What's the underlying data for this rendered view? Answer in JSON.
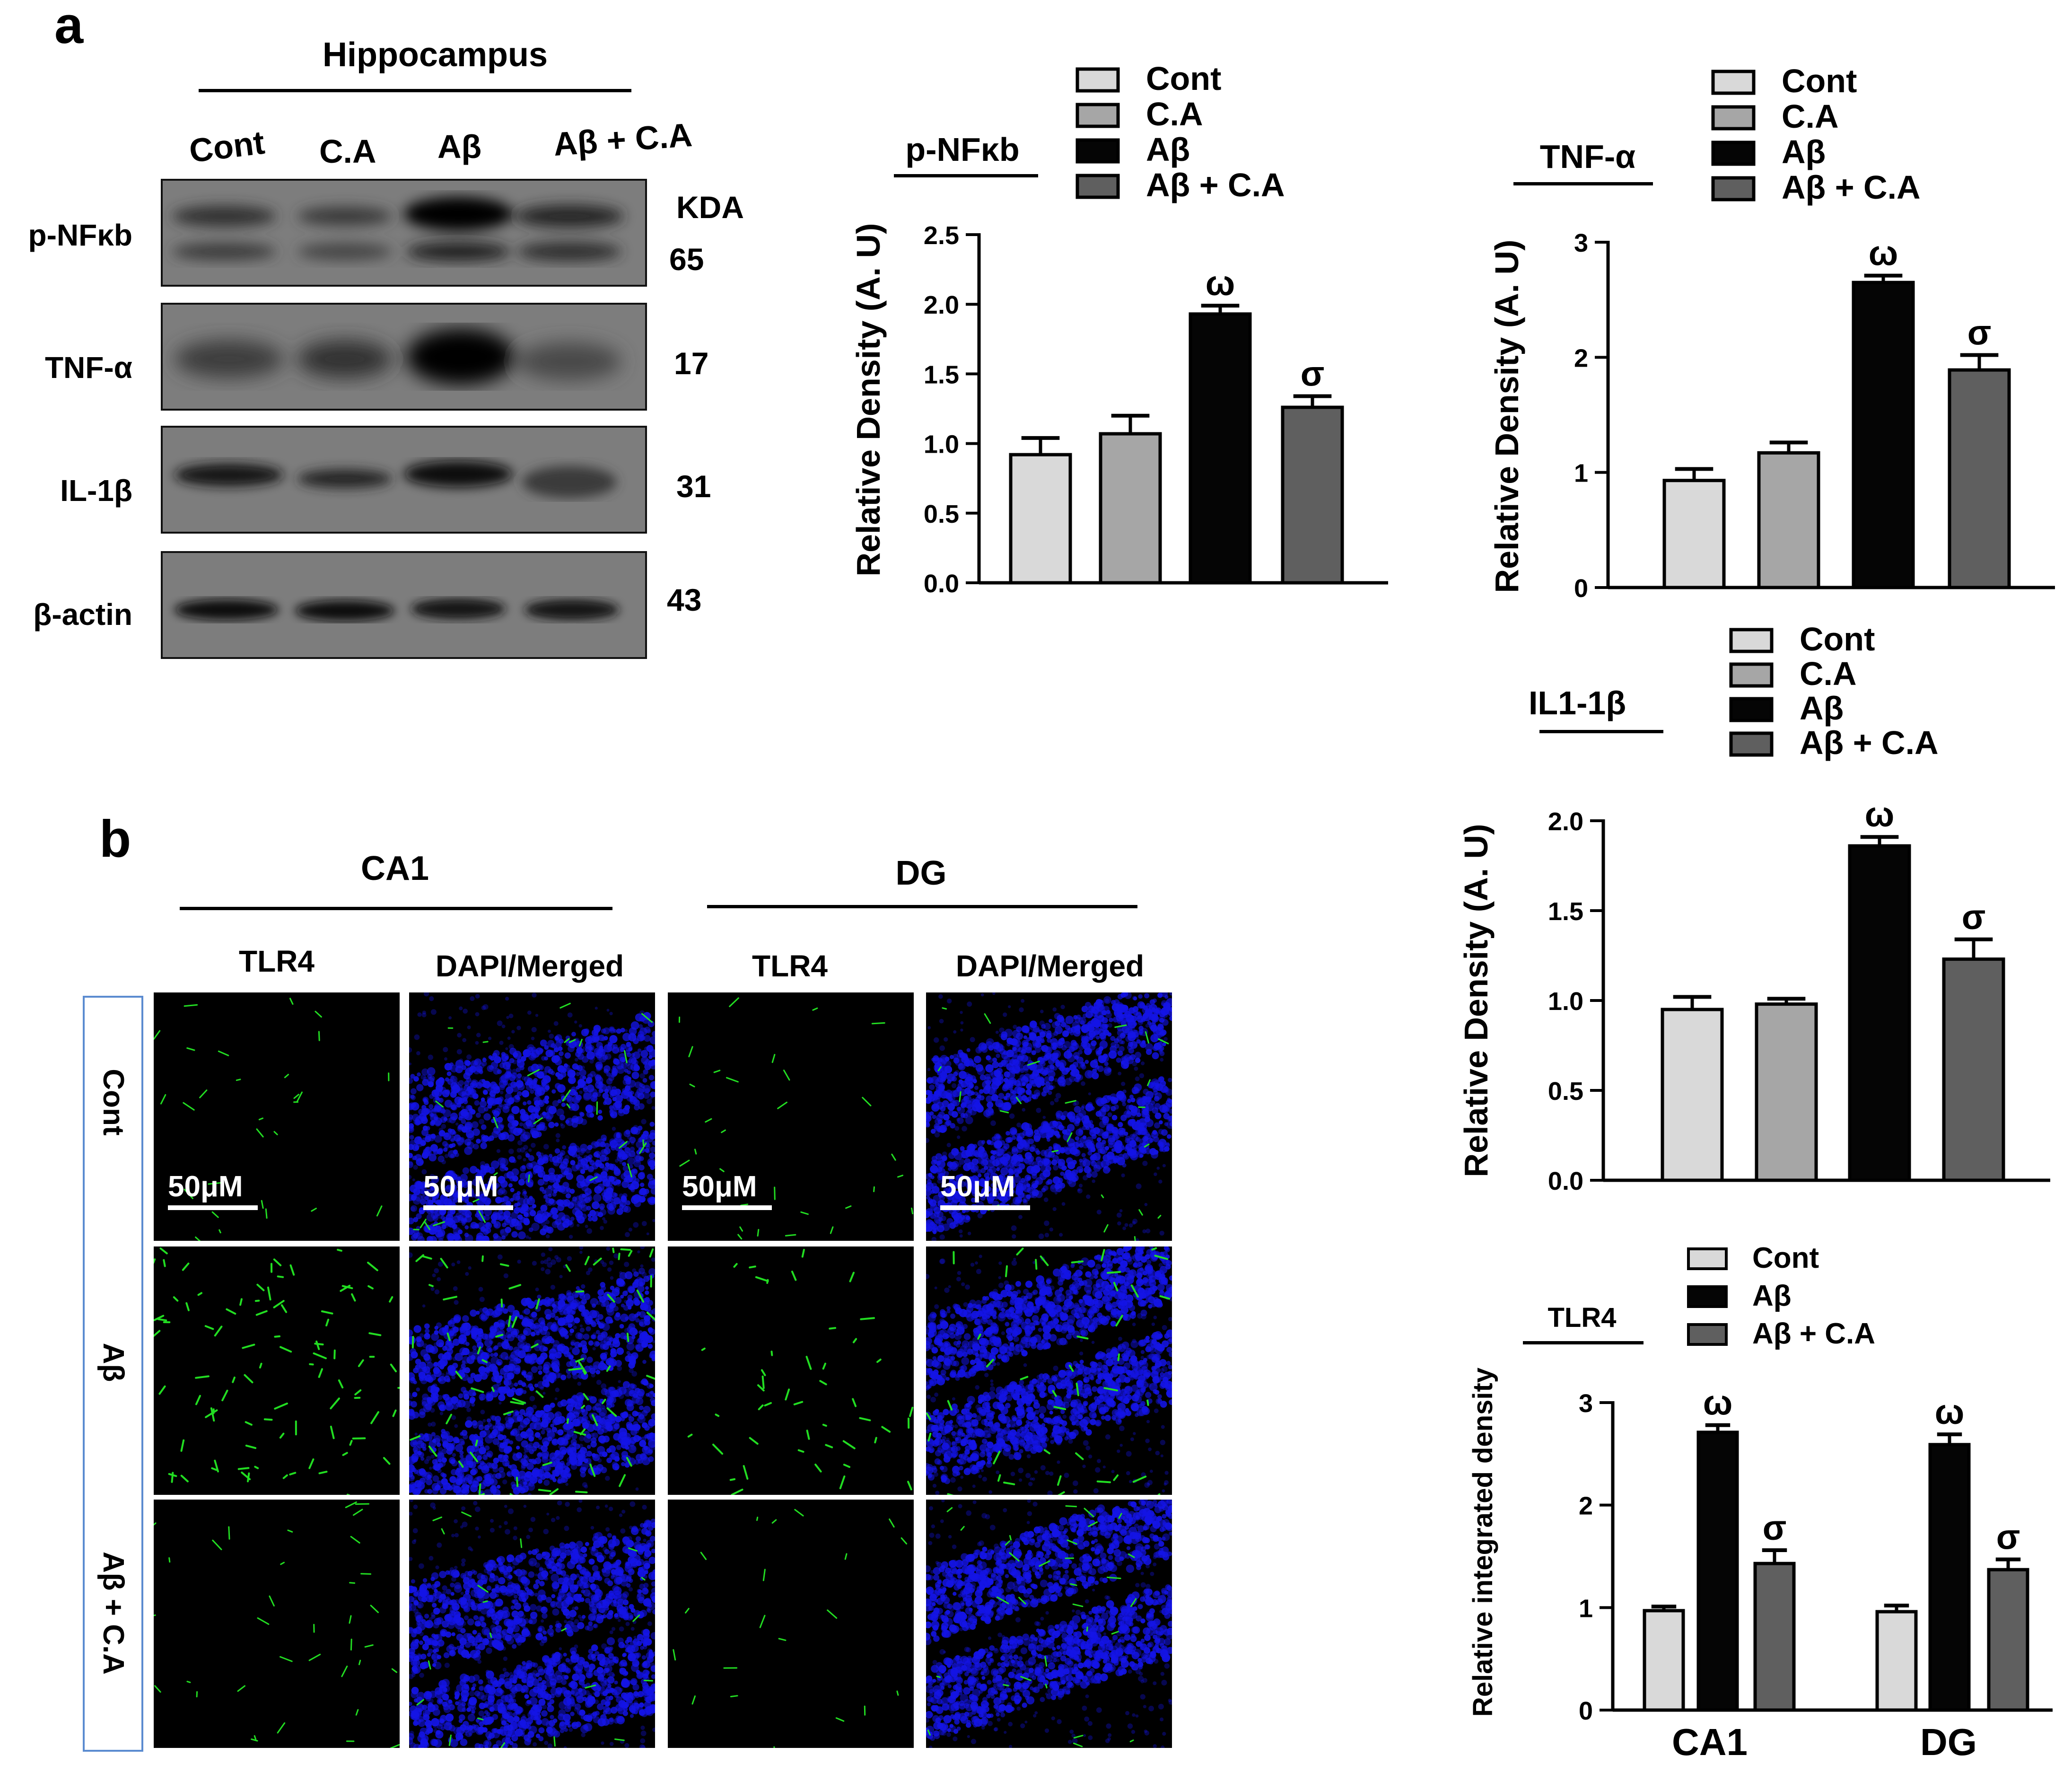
{
  "panels": {
    "a": "a",
    "b": "b"
  },
  "western": {
    "region": "Hippocampus",
    "lanes": [
      "Cont",
      "C.A",
      "Aβ",
      "Aβ + C.A"
    ],
    "kda_label": "KDA",
    "rows": [
      {
        "label": "p-NFκb",
        "kda": "65"
      },
      {
        "label": "TNF-α",
        "kda": "17"
      },
      {
        "label": "IL-1β",
        "kda": "31"
      },
      {
        "label": "β-actin",
        "kda": "43"
      }
    ]
  },
  "immuno": {
    "regions": [
      "CA1",
      "DG"
    ],
    "columns": [
      "TLR4",
      "DAPI/Merged",
      "TLR4",
      "DAPI/Merged"
    ],
    "rows": [
      "Cont",
      "Aβ",
      "Aβ + C.A"
    ],
    "scale_label": "50μM"
  },
  "colors": {
    "cont": "#d9d9d9",
    "ca": "#a6a6a6",
    "abeta": "#050505",
    "abeta_ca": "#5f5f5f",
    "dapi": "#1414e6",
    "tlr4": "#22dd22",
    "group_border": "#5b8bd0"
  },
  "chart_data": [
    {
      "type": "bar",
      "title": "p-NFκb",
      "ylabel": "Relative Density (A. U)",
      "categories": [
        "Cont",
        "C.A",
        "Aβ",
        "Aβ + C.A"
      ],
      "values": [
        0.92,
        1.07,
        1.93,
        1.26
      ],
      "errors": [
        0.12,
        0.13,
        0.06,
        0.08
      ],
      "annotations": [
        "",
        "",
        "ω",
        "σ"
      ],
      "ylim": [
        0,
        2.5
      ],
      "yticks": [
        "0.0",
        "0.5",
        "1.0",
        "1.5",
        "2.0",
        "2.5"
      ],
      "legend": [
        "Cont",
        "C.A",
        "Aβ",
        "Aβ + C.A"
      ],
      "legend_position": "top-right"
    },
    {
      "type": "bar",
      "title": "TNF-α",
      "ylabel": "Relative Density (A. U)",
      "categories": [
        "Cont",
        "C.A",
        "Aβ",
        "Aβ + C.A"
      ],
      "values": [
        0.93,
        1.17,
        2.65,
        1.89
      ],
      "errors": [
        0.1,
        0.09,
        0.06,
        0.13
      ],
      "annotations": [
        "",
        "",
        "ω",
        "σ"
      ],
      "ylim": [
        0,
        3
      ],
      "yticks": [
        "0",
        "1",
        "2",
        "3"
      ],
      "legend": [
        "Cont",
        "C.A",
        "Aβ",
        "Aβ + C.A"
      ],
      "legend_position": "top-right"
    },
    {
      "type": "bar",
      "title": "IL1-1β",
      "ylabel": "Relative Density (A. U)",
      "categories": [
        "Cont",
        "C.A",
        "Aβ",
        "Aβ + C.A"
      ],
      "values": [
        0.95,
        0.98,
        1.86,
        1.23
      ],
      "errors": [
        0.07,
        0.03,
        0.05,
        0.11
      ],
      "annotations": [
        "",
        "",
        "ω",
        "σ"
      ],
      "ylim": [
        0,
        2.0
      ],
      "yticks": [
        "0.0",
        "0.5",
        "1.0",
        "1.5",
        "2.0"
      ],
      "legend": [
        "Cont",
        "C.A",
        "Aβ",
        "Aβ + C.A"
      ],
      "legend_position": "top-right"
    },
    {
      "type": "bar",
      "title": "TLR4",
      "ylabel": "Relative integrated density",
      "categories": [
        "CA1",
        "DG"
      ],
      "series": [
        {
          "name": "Cont",
          "values": [
            0.97,
            0.96
          ],
          "errors": [
            0.04,
            0.06
          ],
          "annotations": [
            "",
            ""
          ]
        },
        {
          "name": "Aβ",
          "values": [
            2.71,
            2.59
          ],
          "errors": [
            0.07,
            0.1
          ],
          "annotations": [
            "ω",
            "ω"
          ]
        },
        {
          "name": "Aβ + C.A",
          "values": [
            1.43,
            1.37
          ],
          "errors": [
            0.13,
            0.1
          ],
          "annotations": [
            "σ",
            "σ"
          ]
        }
      ],
      "ylim": [
        0,
        3
      ],
      "yticks": [
        "0",
        "1",
        "2",
        "3"
      ],
      "legend_position": "top-right"
    }
  ]
}
